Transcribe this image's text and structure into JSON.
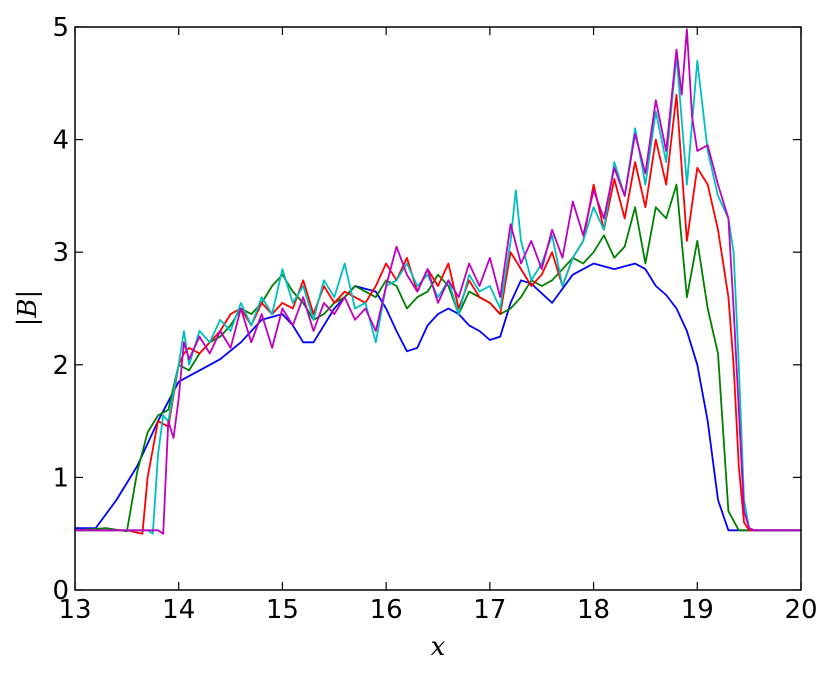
{
  "chart_data": {
    "type": "line",
    "title": "",
    "xlabel": "x",
    "ylabel": "|B|",
    "xlim": [
      13,
      20
    ],
    "ylim": [
      0,
      5
    ],
    "grid": false,
    "legend": "none",
    "x_ticks": [
      "13",
      "14",
      "15",
      "16",
      "17",
      "18",
      "19",
      "20"
    ],
    "y_ticks": [
      "0",
      "1",
      "2",
      "3",
      "4",
      "5"
    ],
    "series": [
      {
        "color": "#0000ff",
        "x": [
          13.0,
          13.2,
          13.4,
          13.6,
          13.8,
          14.0,
          14.2,
          14.4,
          14.6,
          14.8,
          15.0,
          15.1,
          15.2,
          15.3,
          15.5,
          15.7,
          15.9,
          16.0,
          16.1,
          16.2,
          16.3,
          16.4,
          16.5,
          16.6,
          16.7,
          16.8,
          16.9,
          17.0,
          17.1,
          17.2,
          17.3,
          17.4,
          17.6,
          17.8,
          18.0,
          18.2,
          18.4,
          18.5,
          18.6,
          18.7,
          18.8,
          18.9,
          19.0,
          19.1,
          19.2,
          19.3,
          19.5,
          20.0
        ],
        "y": [
          0.55,
          0.55,
          0.8,
          1.1,
          1.5,
          1.85,
          1.95,
          2.05,
          2.2,
          2.4,
          2.45,
          2.35,
          2.2,
          2.2,
          2.5,
          2.7,
          2.65,
          2.5,
          2.3,
          2.12,
          2.15,
          2.35,
          2.45,
          2.5,
          2.45,
          2.35,
          2.3,
          2.22,
          2.25,
          2.55,
          2.75,
          2.72,
          2.55,
          2.8,
          2.9,
          2.85,
          2.9,
          2.85,
          2.7,
          2.62,
          2.5,
          2.3,
          2.0,
          1.5,
          0.8,
          0.53,
          0.53,
          0.53
        ]
      },
      {
        "color": "#008000",
        "x": [
          13.0,
          13.3,
          13.5,
          13.6,
          13.7,
          13.8,
          13.9,
          14.0,
          14.1,
          14.2,
          14.3,
          14.4,
          14.5,
          14.6,
          14.7,
          14.8,
          14.9,
          15.0,
          15.1,
          15.2,
          15.3,
          15.4,
          15.5,
          15.6,
          15.7,
          15.8,
          15.9,
          16.0,
          16.1,
          16.2,
          16.3,
          16.4,
          16.5,
          16.6,
          16.7,
          16.8,
          16.9,
          17.0,
          17.1,
          17.2,
          17.3,
          17.4,
          17.5,
          17.6,
          17.7,
          17.8,
          17.9,
          18.0,
          18.1,
          18.2,
          18.3,
          18.4,
          18.5,
          18.6,
          18.7,
          18.8,
          18.9,
          19.0,
          19.1,
          19.2,
          19.3,
          19.4,
          19.5,
          20.0
        ],
        "y": [
          0.53,
          0.55,
          0.52,
          1.05,
          1.4,
          1.55,
          1.6,
          2.0,
          1.95,
          2.1,
          2.2,
          2.25,
          2.35,
          2.5,
          2.45,
          2.55,
          2.7,
          2.8,
          2.65,
          2.55,
          2.4,
          2.45,
          2.55,
          2.6,
          2.7,
          2.65,
          2.6,
          2.75,
          2.7,
          2.5,
          2.6,
          2.65,
          2.8,
          2.7,
          2.45,
          2.65,
          2.6,
          2.55,
          2.45,
          2.5,
          2.6,
          2.75,
          2.7,
          2.75,
          2.85,
          2.95,
          2.9,
          3.0,
          3.15,
          2.95,
          3.05,
          3.4,
          2.9,
          3.4,
          3.3,
          3.6,
          2.6,
          3.1,
          2.5,
          2.1,
          0.7,
          0.53,
          0.53,
          0.53
        ]
      },
      {
        "color": "#ff0000",
        "x": [
          13.0,
          13.5,
          13.65,
          13.7,
          13.8,
          13.9,
          14.0,
          14.05,
          14.1,
          14.2,
          14.3,
          14.4,
          14.5,
          14.6,
          14.7,
          14.8,
          14.9,
          15.0,
          15.1,
          15.2,
          15.3,
          15.4,
          15.5,
          15.6,
          15.7,
          15.8,
          15.9,
          16.0,
          16.1,
          16.2,
          16.3,
          16.4,
          16.5,
          16.6,
          16.7,
          16.8,
          16.9,
          17.0,
          17.1,
          17.2,
          17.3,
          17.4,
          17.5,
          17.6,
          17.7,
          17.8,
          17.9,
          18.0,
          18.1,
          18.2,
          18.3,
          18.4,
          18.5,
          18.6,
          18.7,
          18.8,
          18.9,
          19.0,
          19.1,
          19.2,
          19.3,
          19.35,
          19.4,
          19.45,
          19.5,
          20.0
        ],
        "y": [
          0.53,
          0.53,
          0.5,
          1.0,
          1.5,
          1.45,
          2.0,
          2.1,
          2.15,
          2.1,
          2.2,
          2.3,
          2.45,
          2.5,
          2.35,
          2.55,
          2.45,
          2.55,
          2.5,
          2.75,
          2.45,
          2.7,
          2.55,
          2.65,
          2.6,
          2.55,
          2.7,
          2.9,
          2.75,
          2.95,
          2.65,
          2.85,
          2.7,
          2.9,
          2.5,
          2.75,
          2.6,
          2.55,
          2.45,
          3.0,
          2.85,
          2.7,
          2.8,
          3.0,
          2.7,
          2.95,
          3.1,
          3.6,
          3.2,
          3.65,
          3.3,
          3.8,
          3.4,
          4.0,
          3.6,
          4.4,
          3.1,
          3.75,
          3.6,
          3.2,
          2.6,
          2.0,
          1.1,
          0.6,
          0.53,
          0.53
        ]
      },
      {
        "color": "#00bfbf",
        "x": [
          13.0,
          13.7,
          13.75,
          13.8,
          13.85,
          13.9,
          14.0,
          14.05,
          14.1,
          14.2,
          14.3,
          14.4,
          14.5,
          14.6,
          14.7,
          14.8,
          14.9,
          15.0,
          15.1,
          15.2,
          15.3,
          15.4,
          15.5,
          15.6,
          15.7,
          15.8,
          15.9,
          16.0,
          16.1,
          16.2,
          16.3,
          16.4,
          16.5,
          16.6,
          16.7,
          16.8,
          16.9,
          17.0,
          17.1,
          17.2,
          17.25,
          17.3,
          17.4,
          17.5,
          17.6,
          17.7,
          17.8,
          17.9,
          18.0,
          18.1,
          18.2,
          18.3,
          18.4,
          18.5,
          18.6,
          18.7,
          18.8,
          18.9,
          19.0,
          19.1,
          19.2,
          19.3,
          19.35,
          19.4,
          19.45,
          19.5,
          19.55,
          20.0
        ],
        "y": [
          0.53,
          0.53,
          0.5,
          1.2,
          1.55,
          1.5,
          2.0,
          2.3,
          2.0,
          2.3,
          2.2,
          2.4,
          2.3,
          2.55,
          2.35,
          2.6,
          2.45,
          2.85,
          2.55,
          2.7,
          2.4,
          2.75,
          2.6,
          2.9,
          2.5,
          2.55,
          2.2,
          2.7,
          2.75,
          2.9,
          2.7,
          2.8,
          2.6,
          2.75,
          2.45,
          2.8,
          2.65,
          2.7,
          2.5,
          3.1,
          3.55,
          3.1,
          2.75,
          2.9,
          3.15,
          2.7,
          2.95,
          3.1,
          3.4,
          3.2,
          3.8,
          3.5,
          4.1,
          3.6,
          4.25,
          3.8,
          4.75,
          3.6,
          4.7,
          3.9,
          3.5,
          3.3,
          3.0,
          2.0,
          0.8,
          0.55,
          0.53,
          0.53
        ]
      },
      {
        "color": "#bf00bf",
        "x": [
          13.0,
          13.8,
          13.85,
          13.9,
          13.95,
          14.0,
          14.05,
          14.1,
          14.2,
          14.3,
          14.4,
          14.5,
          14.6,
          14.7,
          14.8,
          14.9,
          15.0,
          15.1,
          15.2,
          15.3,
          15.4,
          15.5,
          15.6,
          15.7,
          15.8,
          15.9,
          16.0,
          16.1,
          16.2,
          16.3,
          16.4,
          16.5,
          16.6,
          16.7,
          16.8,
          16.9,
          17.0,
          17.1,
          17.2,
          17.3,
          17.4,
          17.5,
          17.6,
          17.7,
          17.8,
          17.9,
          18.0,
          18.1,
          18.2,
          18.3,
          18.4,
          18.5,
          18.6,
          18.7,
          18.8,
          18.85,
          18.9,
          18.95,
          19.0,
          19.1,
          19.2,
          19.3,
          19.35,
          19.4,
          19.45,
          19.5,
          19.55,
          20.0
        ],
        "y": [
          0.53,
          0.53,
          0.5,
          1.5,
          1.35,
          1.7,
          2.2,
          2.05,
          2.25,
          2.1,
          2.3,
          2.15,
          2.5,
          2.2,
          2.45,
          2.15,
          2.5,
          2.35,
          2.6,
          2.3,
          2.55,
          2.45,
          2.6,
          2.4,
          2.5,
          2.3,
          2.7,
          3.05,
          2.8,
          2.65,
          2.85,
          2.55,
          2.75,
          2.6,
          2.9,
          2.7,
          2.95,
          2.6,
          3.25,
          2.9,
          3.1,
          2.85,
          3.2,
          2.95,
          3.45,
          3.15,
          3.55,
          3.3,
          3.75,
          3.5,
          4.05,
          3.7,
          4.35,
          3.9,
          4.8,
          4.4,
          4.98,
          4.2,
          3.9,
          3.95,
          3.6,
          3.3,
          2.5,
          1.6,
          0.7,
          0.55,
          0.53,
          0.53
        ]
      }
    ]
  }
}
